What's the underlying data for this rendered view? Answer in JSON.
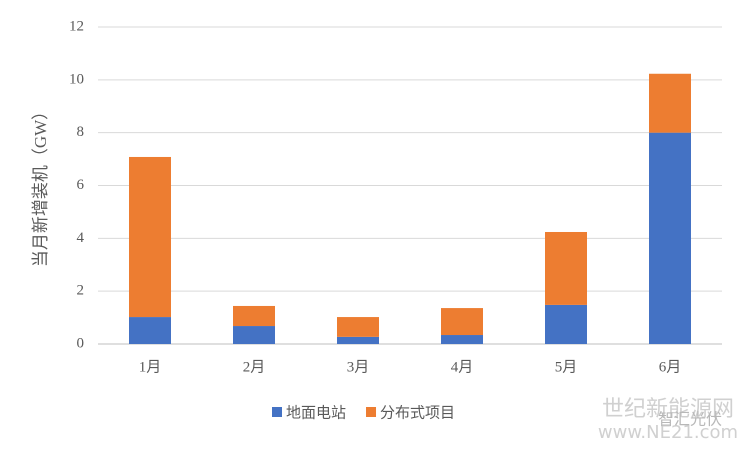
{
  "chart_data": {
    "type": "bar",
    "stacked": true,
    "y_label": "当月新增装机（GW）",
    "categories": [
      "1月",
      "2月",
      "3月",
      "4月",
      "5月",
      "6月"
    ],
    "series": [
      {
        "name": "地面电站",
        "color": "#4472c4",
        "values": [
          1.02,
          0.68,
          0.27,
          0.34,
          1.48,
          8.0
        ]
      },
      {
        "name": "分布式项目",
        "color": "#ed7d31",
        "values": [
          6.06,
          0.76,
          0.75,
          1.02,
          2.76,
          2.23
        ]
      }
    ],
    "ylim": [
      0,
      12
    ],
    "yticks": [
      0,
      2,
      4,
      6,
      8,
      10,
      12
    ],
    "grid": true,
    "legend": "bottom",
    "watermark": [
      "世纪新能源网",
      "www.NE21.com",
      "智汇光伏"
    ]
  }
}
